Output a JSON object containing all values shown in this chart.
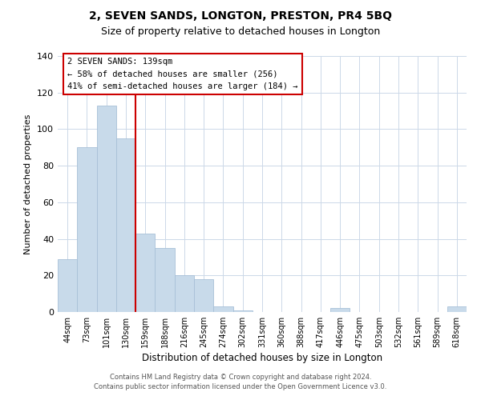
{
  "title": "2, SEVEN SANDS, LONGTON, PRESTON, PR4 5BQ",
  "subtitle": "Size of property relative to detached houses in Longton",
  "xlabel": "Distribution of detached houses by size in Longton",
  "ylabel": "Number of detached properties",
  "bar_labels": [
    "44sqm",
    "73sqm",
    "101sqm",
    "130sqm",
    "159sqm",
    "188sqm",
    "216sqm",
    "245sqm",
    "274sqm",
    "302sqm",
    "331sqm",
    "360sqm",
    "388sqm",
    "417sqm",
    "446sqm",
    "475sqm",
    "503sqm",
    "532sqm",
    "561sqm",
    "589sqm",
    "618sqm"
  ],
  "bar_values": [
    29,
    90,
    113,
    95,
    43,
    35,
    20,
    18,
    3,
    1,
    0,
    0,
    0,
    0,
    2,
    0,
    0,
    0,
    0,
    0,
    3
  ],
  "bar_color": "#c8daea",
  "bar_edge_color": "#a8c0d8",
  "vline_x": 3.5,
  "vline_color": "#cc0000",
  "ylim": [
    0,
    140
  ],
  "yticks": [
    0,
    20,
    40,
    60,
    80,
    100,
    120,
    140
  ],
  "annotation_title": "2 SEVEN SANDS: 139sqm",
  "annotation_line1": "← 58% of detached houses are smaller (256)",
  "annotation_line2": "41% of semi-detached houses are larger (184) →",
  "annotation_box_color": "#ffffff",
  "annotation_box_edge": "#cc0000",
  "footer_line1": "Contains HM Land Registry data © Crown copyright and database right 2024.",
  "footer_line2": "Contains public sector information licensed under the Open Government Licence v3.0.",
  "background_color": "#ffffff",
  "grid_color": "#ccd8e8"
}
